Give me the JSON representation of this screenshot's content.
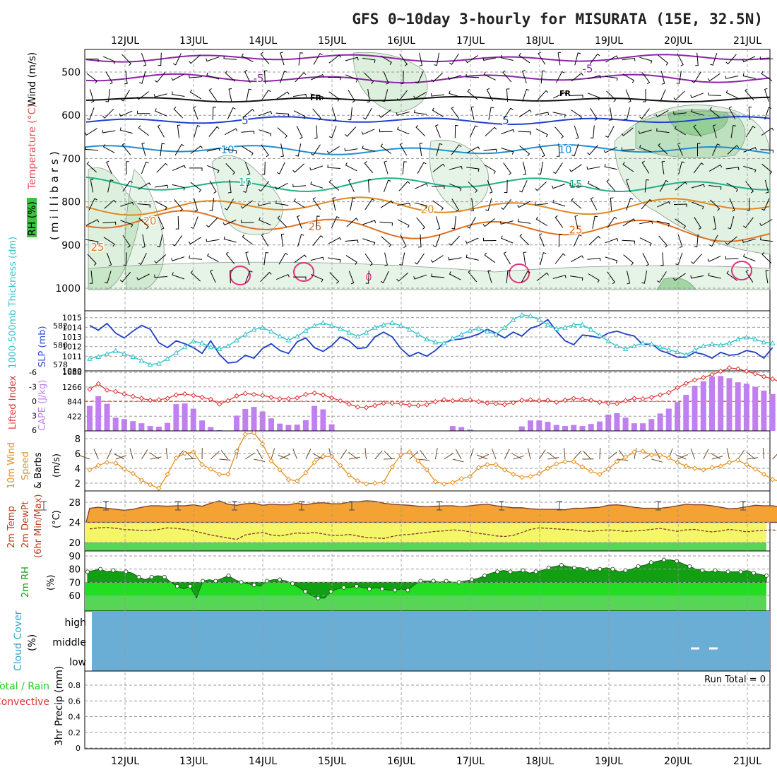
{
  "title": "GFS 0~10day 3-hourly for MISURATA (15E, 32.5N)",
  "dates": [
    "12JUL",
    "13JUL",
    "14JUL",
    "15JUL",
    "16JUL",
    "17JUL",
    "18JUL",
    "19JUL",
    "20JUL",
    "21JUL"
  ],
  "panels": {
    "upper": {
      "ylabel_wind": "Wind (m/s)",
      "ylabel_temp": "Temperature (°C)",
      "ylabel_rh": "RH (%)",
      "ylabel_mb": "(millibars)",
      "yticks": [
        500,
        600,
        700,
        800,
        900,
        1000
      ],
      "fr_label": "FR",
      "isotherm_labels": [
        "-5",
        "5",
        "10",
        "15",
        "20",
        "25",
        "0"
      ]
    },
    "slp": {
      "ylabel_thick": "1000-500mb Thickness (dm)",
      "ylabel_slp": "SLP (mb)",
      "slp_ticks": [
        1011,
        1012,
        1013,
        1014,
        1015
      ],
      "slp_top_tick": "1080",
      "thick_ticks": [
        578,
        580,
        582
      ]
    },
    "cape": {
      "ylabel_li": "Lifted Index",
      "ylabel_cape": "CAPE (J/kg)",
      "li_ticks": [
        "-6",
        "-3",
        "0",
        "3",
        "6"
      ],
      "cape_ticks": [
        "1688",
        "1266",
        "844",
        "422"
      ]
    },
    "wind10m": {
      "ylabel1": "10m Wind",
      "ylabel2": "Speed",
      "ylabel3": "& Barbs",
      "ylabel_unit": "(m/s)",
      "yticks": [
        2,
        4,
        6,
        8
      ]
    },
    "temp2m": {
      "ylabel1": "2m Temp",
      "ylabel2": "2m DewPt",
      "ylabel3": "(6hr Min/Max)",
      "ylabel_unit": "(°C)",
      "yticks": [
        20,
        24,
        28
      ]
    },
    "rh2m": {
      "ylabel": "2m RH",
      "ylabel_unit": "(%)",
      "yticks": [
        60,
        70,
        80,
        90
      ]
    },
    "cloud": {
      "ylabel1": "Cloud Cover",
      "ylabel_unit": "(%)",
      "levels": [
        "high",
        "middle",
        "low"
      ]
    },
    "precip": {
      "ylabel1": "Total / Rain",
      "ylabel2": "Convective",
      "ylabel3": "3hr Precip (mm)",
      "run_total": "Run Total = 0",
      "yticks": [
        "0",
        "0.2",
        "0.4",
        "0.6",
        "0.8"
      ]
    }
  },
  "colors": {
    "slp": "#1f3fc8",
    "thickness": "#33c3cc",
    "lifted_index": "#dd3333",
    "cape_bar": "#c080f0",
    "wind_speed": "#e89020",
    "temp_fill": "#f4a233",
    "dewpt_fill": "#f5f56a",
    "rh_dark": "#11a011",
    "rh_light": "#22dd22",
    "cloud": "#6aaed6"
  },
  "chart_data": [
    {
      "type": "line",
      "title": "SLP (mb)",
      "x_unit": "3-hourly steps from 11JUL 12Z",
      "series": [
        {
          "name": "SLP (mb)",
          "values": [
            1014.2,
            1013.7,
            1014.4,
            1013.4,
            1012.9,
            1013.6,
            1014.2,
            1013.8,
            1012.4,
            1011.9,
            1012.6,
            1012.3,
            1011.9,
            1011.3,
            1012.6,
            1011.2,
            1010.3,
            1010.4,
            1011.1,
            1010.8,
            1011.8,
            1012.3,
            1011.6,
            1011.3,
            1012.5,
            1012.9,
            1011.9,
            1011.5,
            1012.1,
            1013.0,
            1012.6,
            1011.8,
            1011.9,
            1013.0,
            1013.5,
            1013.0,
            1011.8,
            1011.0,
            1011.4,
            1011.0,
            1011.6,
            1012.4,
            1012.7,
            1012.8,
            1013.0,
            1013.3,
            1013.8,
            1013.4,
            1012.9,
            1013.5,
            1013.1,
            1013.9,
            1014.2,
            1014.8,
            1013.6,
            1012.6,
            1012.2,
            1013.2,
            1013.1,
            1012.9,
            1013.4,
            1013.6,
            1013.3,
            1013.1,
            1012.2,
            1012.3,
            1011.6,
            1011.3,
            1010.9,
            1010.9,
            1011.4,
            1011.2,
            1010.8,
            1011.4,
            1011.1,
            1011.2,
            1011.6,
            1011.4,
            1010.8,
            1011.9
          ]
        },
        {
          "name": "1000-500mb Thickness (dm)",
          "values": [
            578.6,
            578.8,
            579.1,
            579.4,
            579.1,
            578.8,
            578.4,
            578.0,
            578.1,
            578.6,
            579.2,
            579.8,
            580.4,
            580.2,
            579.8,
            579.6,
            579.9,
            580.5,
            581.1,
            581.6,
            581.8,
            581.4,
            580.9,
            580.5,
            580.9,
            581.5,
            582.0,
            582.3,
            582.0,
            581.7,
            581.3,
            580.9,
            581.3,
            581.8,
            582.1,
            582.3,
            582.0,
            581.6,
            581.1,
            580.6,
            580.3,
            580.2,
            580.7,
            581.1,
            581.5,
            581.7,
            581.4,
            581.1,
            581.8,
            582.6,
            583.1,
            583.0,
            582.6,
            582.1,
            581.7,
            581.8,
            582.1,
            582.1,
            581.6,
            581.0,
            580.4,
            579.9,
            579.6,
            579.9,
            580.2,
            580.1,
            579.8,
            579.5,
            579.3,
            579.0,
            579.5,
            579.9,
            580.1,
            580.0,
            580.2,
            580.6,
            580.8,
            580.6,
            580.3,
            580.2
          ]
        }
      ]
    },
    {
      "type": "bar",
      "title": "CAPE (J/kg)",
      "x_unit": "3-hourly steps from 11JUL 12Z",
      "series": [
        {
          "name": "CAPE (J/kg)",
          "values": [
            720,
            1000,
            780,
            380,
            340,
            280,
            220,
            140,
            120,
            230,
            770,
            790,
            640,
            300,
            110,
            20,
            0,
            440,
            630,
            690,
            560,
            360,
            210,
            170,
            180,
            310,
            720,
            620,
            190,
            0,
            0,
            0,
            0,
            0,
            0,
            0,
            0,
            0,
            0,
            0,
            0,
            0,
            140,
            110,
            40,
            0,
            0,
            0,
            0,
            0,
            130,
            300,
            300,
            260,
            170,
            140,
            170,
            140,
            200,
            270,
            470,
            510,
            380,
            220,
            220,
            340,
            500,
            640,
            830,
            1040,
            1300,
            1430,
            1560,
            1580,
            1520,
            1400,
            1360,
            1270,
            1160,
            1060,
            840,
            590,
            420,
            420
          ]
        },
        {
          "name": "Lifted Index",
          "values": [
            -2.5,
            -3.6,
            -2.3,
            -2.0,
            -1.5,
            -1.0,
            -0.6,
            -0.2,
            -0.3,
            -0.6,
            -1.3,
            -1.5,
            -1.2,
            -0.8,
            -0.4,
            0.6,
            -0.1,
            -1.1,
            -1.6,
            -1.4,
            -1.2,
            -0.8,
            -0.5,
            -0.5,
            -0.7,
            -1.4,
            -1.7,
            -1.3,
            -0.7,
            -0.1,
            0.6,
            1.2,
            1.3,
            0.9,
            0.4,
            0.4,
            0.5,
            0.8,
            0.9,
            0.7,
            0.1,
            -0.3,
            -0.1,
            -0.3,
            -0.3,
            0.1,
            0.4,
            0.5,
            0.7,
            0.3,
            -0.2,
            -0.3,
            -0.1,
            -0.2,
            0.2,
            -0.2,
            -0.6,
            -0.4,
            -0.2,
            0.2,
            0.4,
            0.5,
            -0.1,
            -0.6,
            -0.5,
            -0.8,
            -1.3,
            -1.8,
            -2.8,
            -3.7,
            -4.4,
            -4.9,
            -5.5,
            -6.2,
            -6.9,
            -6.7,
            -6.2,
            -5.7,
            -5.1,
            -4.6,
            -3.9,
            -3.5,
            -3.0,
            -1.6
          ]
        }
      ]
    },
    {
      "type": "line",
      "title": "10m Wind Speed (m/s)",
      "series": [
        {
          "name": "10m Wind Speed",
          "values": [
            3.8,
            4.4,
            4.8,
            4.7,
            3.9,
            3.3,
            2.4,
            1.8,
            1.3,
            3.2,
            5.4,
            6.0,
            6.2,
            4.5,
            3.9,
            3.2,
            3.2,
            6.3,
            8.6,
            8.8,
            7.3,
            5.0,
            3.8,
            2.5,
            2.3,
            3.4,
            4.8,
            5.6,
            5.6,
            4.4,
            3.1,
            2.3,
            1.9,
            2.0,
            2.1,
            4.2,
            5.8,
            6.2,
            5.0,
            3.8,
            2.2,
            1.9,
            2.1,
            2.6,
            2.9,
            4.1,
            4.5,
            4.5,
            3.8,
            3.2,
            2.8,
            2.9,
            3.3,
            4.0,
            4.6,
            4.9,
            4.9,
            4.2,
            3.6,
            3.2,
            3.9,
            4.9,
            5.5,
            6.2,
            6.3,
            5.8,
            5.8,
            5.4,
            4.8,
            4.3,
            4.0,
            3.8,
            4.1,
            4.3,
            4.8,
            5.1,
            4.5,
            3.9,
            3.2,
            2.5,
            2.2,
            2.0,
            2.8
          ]
        }
      ]
    },
    {
      "type": "area",
      "title": "2m Temp / 2m DewPt (°C)",
      "series": [
        {
          "name": "2m Temp",
          "values": [
            26.8,
            27.0,
            26.8,
            26.6,
            26.4,
            26.6,
            27.0,
            27.3,
            27.3,
            27.2,
            27.3,
            27.3,
            27.5,
            27.2,
            27.8,
            28.3,
            27.6,
            27.4,
            27.7,
            27.8,
            27.4,
            27.6,
            27.5,
            27.5,
            27.8,
            27.5,
            27.8,
            27.9,
            27.7,
            27.7,
            28.0,
            28.1,
            28.3,
            28.2,
            27.8,
            27.6,
            27.5,
            27.4,
            27.2,
            27.1,
            27.2,
            27.3,
            27.3,
            27.1,
            27.3,
            27.5,
            27.6,
            27.3,
            27.1,
            26.9,
            26.9,
            26.7,
            26.6,
            26.6,
            26.6,
            26.5,
            26.8,
            26.8,
            26.9,
            27.0,
            27.4,
            27.5,
            27.3,
            27.0,
            26.8,
            26.8,
            26.8,
            27.0,
            27.3,
            27.6,
            27.5,
            27.5,
            27.3,
            27.0,
            26.7,
            26.8,
            27.1,
            27.4,
            27.3,
            27.3,
            27.0,
            26.9,
            26.8,
            26.8
          ]
        },
        {
          "name": "2m DewPt",
          "values": [
            22.7,
            22.9,
            23.0,
            22.8,
            22.6,
            22.5,
            22.4,
            22.4,
            22.6,
            22.9,
            22.8,
            22.6,
            22.3,
            21.9,
            21.5,
            21.2,
            20.9,
            20.6,
            21.5,
            21.8,
            22.0,
            21.5,
            21.3,
            21.6,
            21.9,
            21.8,
            22.0,
            21.7,
            21.4,
            21.4,
            21.6,
            21.3,
            21.0,
            20.9,
            20.8,
            21.2,
            21.5,
            21.6,
            21.8,
            22.0,
            22.2,
            22.3,
            22.5,
            22.4,
            22.1,
            21.8,
            21.6,
            21.3,
            21.2,
            21.4,
            22.0,
            22.6,
            22.9,
            22.8,
            22.7,
            22.6,
            22.5,
            22.3,
            22.2,
            22.4,
            22.5,
            22.4,
            22.2,
            22.3,
            22.4,
            22.6,
            22.8,
            22.5,
            22.2,
            22.5,
            22.6,
            22.3,
            22.1,
            22.3,
            22.6,
            22.4,
            22.1,
            22.3,
            22.4,
            22.5,
            22.3,
            22.2,
            22.5,
            22.4
          ]
        }
      ]
    },
    {
      "type": "area",
      "title": "2m RH (%)",
      "series": [
        {
          "name": "2m RH",
          "values": [
            78,
            79,
            80,
            78,
            79,
            78,
            78,
            77,
            74,
            72,
            74,
            75,
            74,
            70,
            67,
            65,
            67,
            58,
            71,
            72,
            71,
            73,
            75,
            72,
            70,
            69,
            68,
            67,
            71,
            72,
            72,
            71,
            69,
            66,
            63,
            60,
            58,
            58,
            63,
            65,
            66,
            66,
            67,
            66,
            65,
            66,
            65,
            64,
            64,
            65,
            64,
            68,
            71,
            71,
            71,
            70,
            71,
            70,
            70,
            71,
            72,
            73,
            75,
            77,
            78,
            79,
            78,
            78,
            79,
            77,
            78,
            79,
            81,
            82,
            83,
            82,
            81,
            81,
            80,
            79,
            80,
            81,
            80,
            78,
            79,
            80,
            82,
            83,
            85,
            86,
            87,
            87,
            86,
            84,
            82,
            80,
            79,
            78,
            79,
            78,
            78,
            78,
            78,
            79,
            77,
            76,
            75
          ]
        }
      ]
    },
    {
      "type": "area",
      "title": "Cloud Cover (%)",
      "categories": [
        "high",
        "middle",
        "low"
      ],
      "values": [
        0,
        0,
        0
      ]
    },
    {
      "type": "bar",
      "title": "3hr Precip (mm)",
      "ylim": [
        0,
        0.9
      ],
      "values": [
        0
      ]
    }
  ]
}
